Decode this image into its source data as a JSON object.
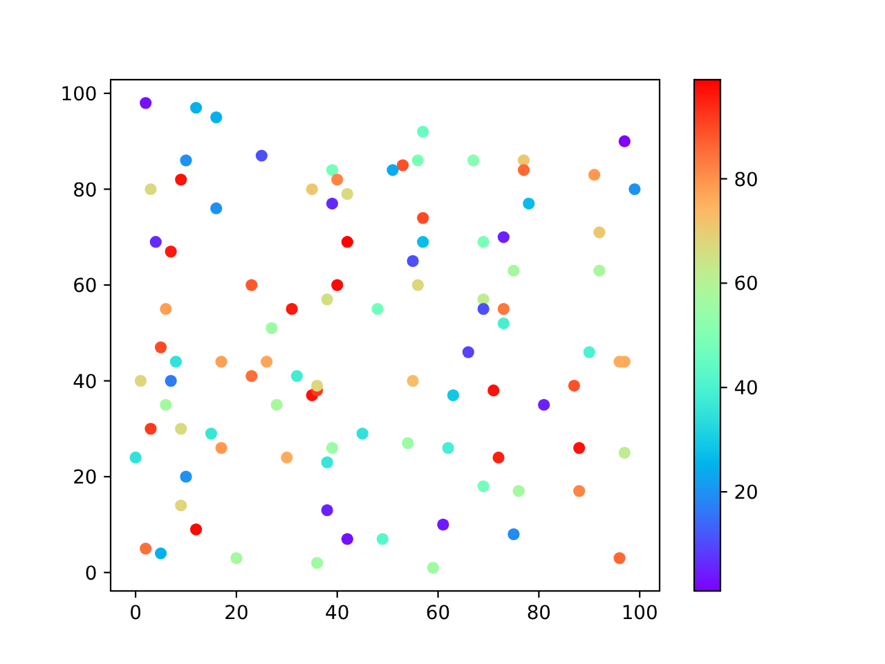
{
  "chart_data": {
    "type": "scatter",
    "marker": "circle",
    "x": [
      2,
      12,
      16,
      10,
      25,
      9,
      3,
      35,
      39,
      40,
      42,
      39,
      16,
      4,
      7,
      42,
      23,
      40,
      6,
      31,
      38,
      48,
      27,
      57,
      53,
      51,
      56,
      67,
      77,
      77,
      91,
      97,
      99,
      78,
      57,
      57,
      69,
      73,
      92,
      55,
      75,
      92,
      56,
      69,
      69,
      73,
      73,
      5,
      8,
      17,
      26,
      23,
      32,
      1,
      7,
      35,
      36,
      36,
      6,
      28,
      3,
      9,
      15,
      17,
      0,
      30,
      39,
      38,
      45,
      10,
      9,
      38,
      12,
      42,
      49,
      2,
      5,
      20,
      36,
      66,
      90,
      96,
      97,
      55,
      63,
      71,
      87,
      81,
      54,
      62,
      72,
      88,
      97,
      69,
      76,
      88,
      61,
      75,
      59,
      96
    ],
    "values": [
      98,
      97,
      95,
      86,
      87,
      82,
      80,
      80,
      84,
      82,
      79,
      77,
      76,
      69,
      67,
      69,
      60,
      60,
      55,
      55,
      57,
      55,
      51,
      92,
      85,
      84,
      86,
      86,
      86,
      84,
      83,
      90,
      80,
      77,
      74,
      69,
      69,
      70,
      71,
      65,
      63,
      63,
      60,
      57,
      55,
      55,
      52,
      47,
      44,
      44,
      44,
      41,
      41,
      40,
      40,
      37,
      38,
      39,
      35,
      35,
      30,
      30,
      29,
      26,
      24,
      24,
      26,
      23,
      29,
      20,
      14,
      13,
      9,
      7,
      7,
      5,
      4,
      3,
      2,
      46,
      46,
      44,
      44,
      40,
      37,
      38,
      39,
      35,
      27,
      26,
      24,
      26,
      25,
      18,
      17,
      17,
      10,
      8,
      1,
      3
    ],
    "cvalues": [
      3,
      25,
      25,
      20,
      11,
      97,
      67,
      71,
      48,
      82,
      67,
      6,
      20,
      6,
      96,
      99,
      88,
      98,
      78,
      96,
      66,
      47,
      55,
      46,
      89,
      24,
      49,
      51,
      71,
      86,
      79,
      1,
      20,
      27,
      90,
      27,
      49,
      5,
      71,
      11,
      57,
      58,
      68,
      62,
      11,
      84,
      39,
      90,
      35,
      78,
      77,
      85,
      38,
      68,
      17,
      97,
      92,
      68,
      57,
      58,
      92,
      67,
      36,
      79,
      35,
      76,
      55,
      36,
      35,
      20,
      68,
      5,
      98,
      3,
      42,
      85,
      25,
      57,
      56,
      9,
      40,
      76,
      76,
      73,
      29,
      97,
      89,
      5,
      55,
      39,
      95,
      97,
      62,
      48,
      57,
      82,
      4,
      19,
      56,
      86
    ],
    "clim": [
      1,
      99
    ],
    "cticks": [
      20,
      40,
      60,
      80
    ],
    "xlim": [
      -4.95,
      103.95
    ],
    "ylim": [
      -3.85,
      102.85
    ],
    "xticks": [
      0,
      20,
      40,
      60,
      80,
      100
    ],
    "yticks": [
      0,
      20,
      40,
      60,
      80,
      100
    ]
  }
}
